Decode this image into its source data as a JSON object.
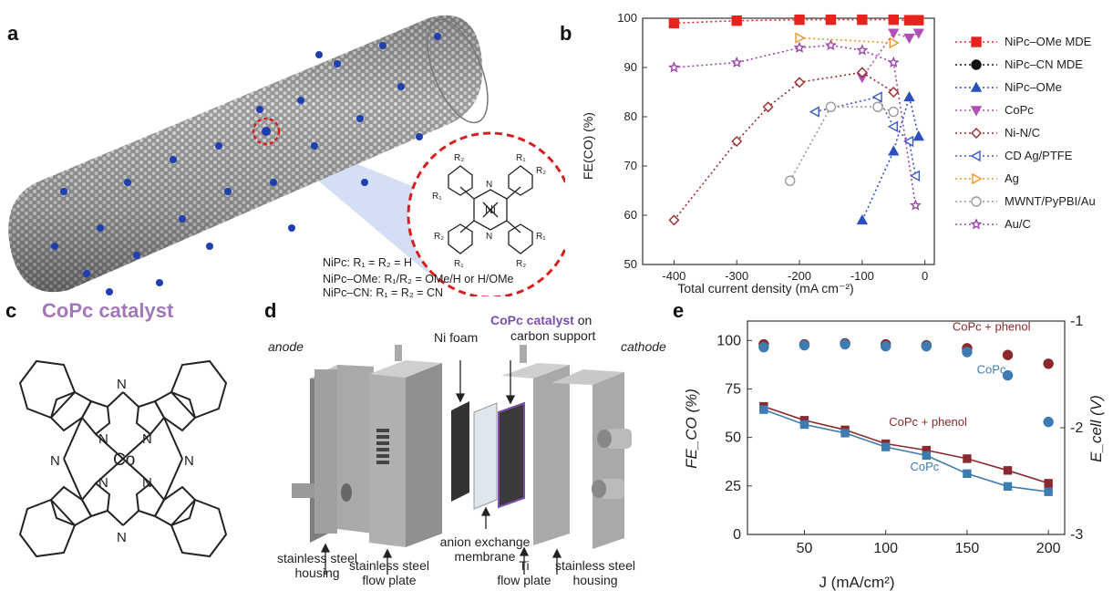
{
  "figure": {
    "panel_labels": {
      "a": "a",
      "b": "b",
      "c": "c",
      "d": "d",
      "e": "e"
    }
  },
  "panel_a": {
    "captions": [
      "NiPc: R₁ = R₂ = H",
      "NiPc–OMe: R₁/R₂ = OMe/H or H/OMe",
      "NiPc–CN: R₁ = R₂ = CN"
    ],
    "center_metal": "Ni",
    "n_label": "N",
    "r1": "R₁",
    "r2": "R₂",
    "colors": {
      "tube": "#8a8a8a",
      "dot": "#1f3fb0",
      "zoom_ring": "#d62020",
      "beam": "#b7c8ef"
    }
  },
  "panel_b": {
    "chart_data": {
      "type": "line",
      "xlabel": "Total current density (mA cm⁻²)",
      "ylabel": "FE(CO) (%)",
      "xlim": [
        -450,
        15
      ],
      "ylim": [
        50,
        100
      ],
      "xticks": [
        -400,
        -300,
        -200,
        -100,
        0
      ],
      "yticks": [
        50,
        60,
        70,
        80,
        90,
        100
      ],
      "legend_position": "right",
      "series": [
        {
          "name": "NiPc–OMe MDE",
          "color": "#e8231e",
          "marker": "square-filled",
          "x": [
            -400,
            -300,
            -200,
            -150,
            -100,
            -50,
            -25,
            -10
          ],
          "y": [
            99,
            99.5,
            99.7,
            99.7,
            99.7,
            99.7,
            99.6,
            99.6
          ]
        },
        {
          "name": "NiPc–CN MDE",
          "color": "#111111",
          "marker": "circle-filled",
          "x": [],
          "y": []
        },
        {
          "name": "NiPc–OMe",
          "color": "#2c4fbf",
          "marker": "triangle-up-filled",
          "x": [
            -100,
            -50,
            -25,
            -10
          ],
          "y": [
            59,
            73,
            84,
            76
          ]
        },
        {
          "name": "CoPc",
          "color": "#b04fb8",
          "marker": "triangle-down-filled",
          "x": [
            -100,
            -50,
            -25,
            -10
          ],
          "y": [
            88,
            97,
            96,
            97
          ]
        },
        {
          "name": "Ni-N/C",
          "color": "#9a2b2b",
          "marker": "diamond-open",
          "x": [
            -400,
            -300,
            -250,
            -200,
            -100,
            -50
          ],
          "y": [
            59,
            75,
            82,
            87,
            89,
            85
          ]
        },
        {
          "name": "CD Ag/PTFE",
          "color": "#3a57c4",
          "marker": "triangle-left-open",
          "x": [
            -175,
            -75,
            -50,
            -25,
            -15
          ],
          "y": [
            81,
            84,
            78,
            75,
            68
          ]
        },
        {
          "name": "Ag",
          "color": "#f0962a",
          "marker": "triangle-right-open",
          "x": [
            -200,
            -50
          ],
          "y": [
            96,
            95
          ]
        },
        {
          "name": "MWNT/PyPBI/Au",
          "color": "#999999",
          "marker": "circle-open",
          "x": [
            -215,
            -150,
            -75,
            -50
          ],
          "y": [
            67,
            82,
            82,
            81
          ]
        },
        {
          "name": "Au/C",
          "color": "#9b47a8",
          "marker": "star-open",
          "x": [
            -400,
            -300,
            -200,
            -150,
            -100,
            -50,
            -15
          ],
          "y": [
            90,
            91,
            94,
            94.5,
            93.5,
            91,
            62
          ]
        }
      ]
    }
  },
  "panel_c": {
    "title": "CoPc catalyst",
    "center_metal": "Co",
    "n_label": "N",
    "title_color": "#a378b8"
  },
  "panel_d": {
    "labels": {
      "anode": "anode",
      "cathode": "cathode",
      "ni_foam": "Ni foam",
      "catalyst_highlight": "CoPc catalyst",
      "catalyst_rest": " on",
      "catalyst_line2": "carbon support",
      "membrane_1": "anion exchange",
      "membrane_2": "membrane",
      "housing_left_1": "stainless steel",
      "housing_left_2": "housing",
      "flow_left_1": "stainless steel",
      "flow_left_2": "flow plate",
      "ti_1": "Ti",
      "ti_2": "flow plate",
      "housing_right_1": "stainless steel",
      "housing_right_2": "housing"
    },
    "colors": {
      "plate": "#a9a9a9",
      "plate_dark": "#7e7e7e",
      "foam": "#3a3a3a",
      "highlight": "#7a4fb0"
    }
  },
  "panel_e": {
    "chart_data": {
      "type": "scatter",
      "xlabel": "J (mA/cm²)",
      "ylabel_left": "FE_CO (%)",
      "ylabel_right": "E_cell (V)",
      "xlim": [
        15,
        210
      ],
      "ylim_left": [
        0,
        110
      ],
      "ylim_right": [
        -3,
        -1
      ],
      "xticks": [
        50,
        100,
        150,
        200
      ],
      "yticks_left": [
        0,
        25,
        50,
        75,
        100
      ],
      "yticks_right": [
        -3,
        -2,
        -1
      ],
      "series": [
        {
          "name": "CoPc + phenol",
          "axis": "left",
          "kind": "fe",
          "color": "#8b2a2e",
          "x": [
            25,
            50,
            75,
            100,
            125,
            150,
            175,
            200
          ],
          "y": [
            98,
            98,
            98.5,
            98,
            97.5,
            96,
            92.5,
            88
          ]
        },
        {
          "name": "CoPc",
          "axis": "left",
          "kind": "fe",
          "color": "#3d7bb0",
          "x": [
            25,
            50,
            75,
            100,
            125,
            150,
            175,
            200
          ],
          "y": [
            96.5,
            97.5,
            98,
            97,
            97,
            94,
            82,
            58
          ]
        },
        {
          "name": "CoPc + phenol",
          "axis": "right",
          "kind": "voltage",
          "color": "#8b2a2e",
          "x": [
            25,
            50,
            75,
            100,
            125,
            150,
            175,
            200
          ],
          "y": [
            -1.8,
            -1.93,
            -2.02,
            -2.15,
            -2.21,
            -2.29,
            -2.4,
            -2.52
          ]
        },
        {
          "name": "CoPc",
          "axis": "right",
          "kind": "voltage",
          "color": "#3d7bb0",
          "x": [
            25,
            50,
            75,
            100,
            125,
            150,
            175,
            200
          ],
          "y": [
            -1.83,
            -1.97,
            -2.05,
            -2.18,
            -2.26,
            -2.43,
            -2.55,
            -2.6
          ]
        }
      ],
      "annotations": {
        "fe_phenol": "CoPc + phenol",
        "fe_copc": "CoPc",
        "v_phenol": "CoPc + phenol",
        "v_copc": "CoPc"
      }
    }
  }
}
